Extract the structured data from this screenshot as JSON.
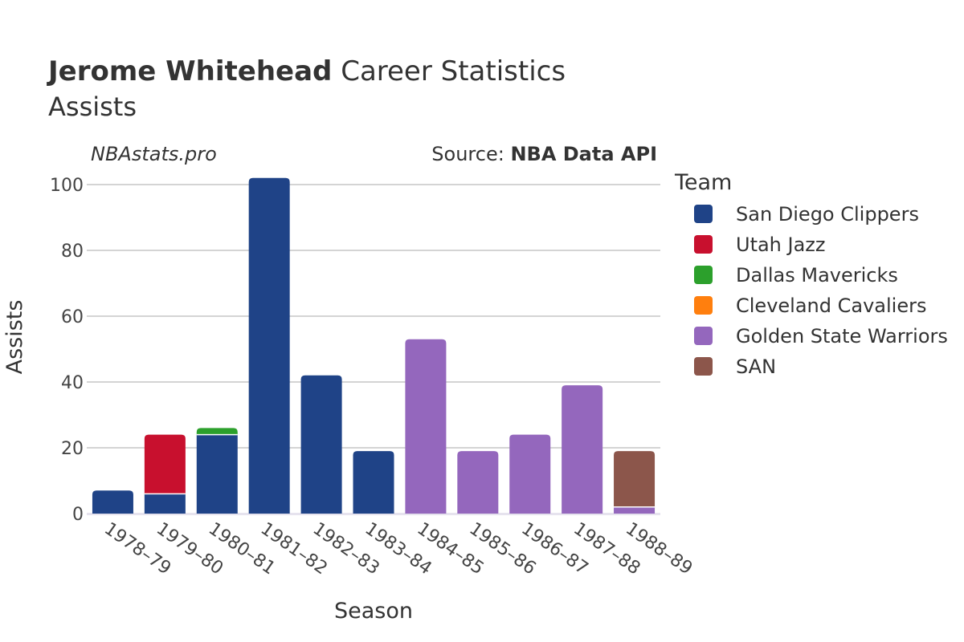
{
  "chart_data": {
    "type": "bar",
    "stacked": true,
    "title_bold": "Jerome Whitehead",
    "title_rest": " Career Statistics",
    "subtitle": "Assists",
    "watermark": "NBAstats.pro",
    "source_label": "Source: ",
    "source_name": "NBA Data API",
    "xlabel": "Season",
    "ylabel": "Assists",
    "ylim": [
      0,
      105
    ],
    "yticks": [
      0,
      20,
      40,
      60,
      80,
      100
    ],
    "grid": true,
    "legend_title": "Team",
    "legend_position": "right",
    "categories": [
      "1978–79",
      "1979–80",
      "1980–81",
      "1981–82",
      "1982–83",
      "1983–84",
      "1984–85",
      "1985–86",
      "1986–87",
      "1987–88",
      "1988–89"
    ],
    "series": [
      {
        "name": "San Diego Clippers",
        "color": "#1f4387",
        "values": [
          7,
          6,
          24,
          102,
          42,
          19,
          0,
          0,
          0,
          0,
          0
        ]
      },
      {
        "name": "Utah Jazz",
        "color": "#c8102e",
        "values": [
          0,
          18,
          0,
          0,
          0,
          0,
          0,
          0,
          0,
          0,
          0
        ]
      },
      {
        "name": "Dallas Mavericks",
        "color": "#2ca02c",
        "values": [
          0,
          0,
          2,
          0,
          0,
          0,
          0,
          0,
          0,
          0,
          0
        ]
      },
      {
        "name": "Cleveland Cavaliers",
        "color": "#ff7f0e",
        "values": [
          0,
          0,
          0,
          0,
          0,
          0,
          0,
          0,
          0,
          0,
          0
        ]
      },
      {
        "name": "Golden State Warriors",
        "color": "#9467bd",
        "values": [
          0,
          0,
          0,
          0,
          0,
          0,
          53,
          19,
          24,
          39,
          2
        ]
      },
      {
        "name": "SAN",
        "color": "#8c564b",
        "values": [
          0,
          0,
          0,
          0,
          0,
          0,
          0,
          0,
          0,
          0,
          17
        ]
      }
    ]
  }
}
